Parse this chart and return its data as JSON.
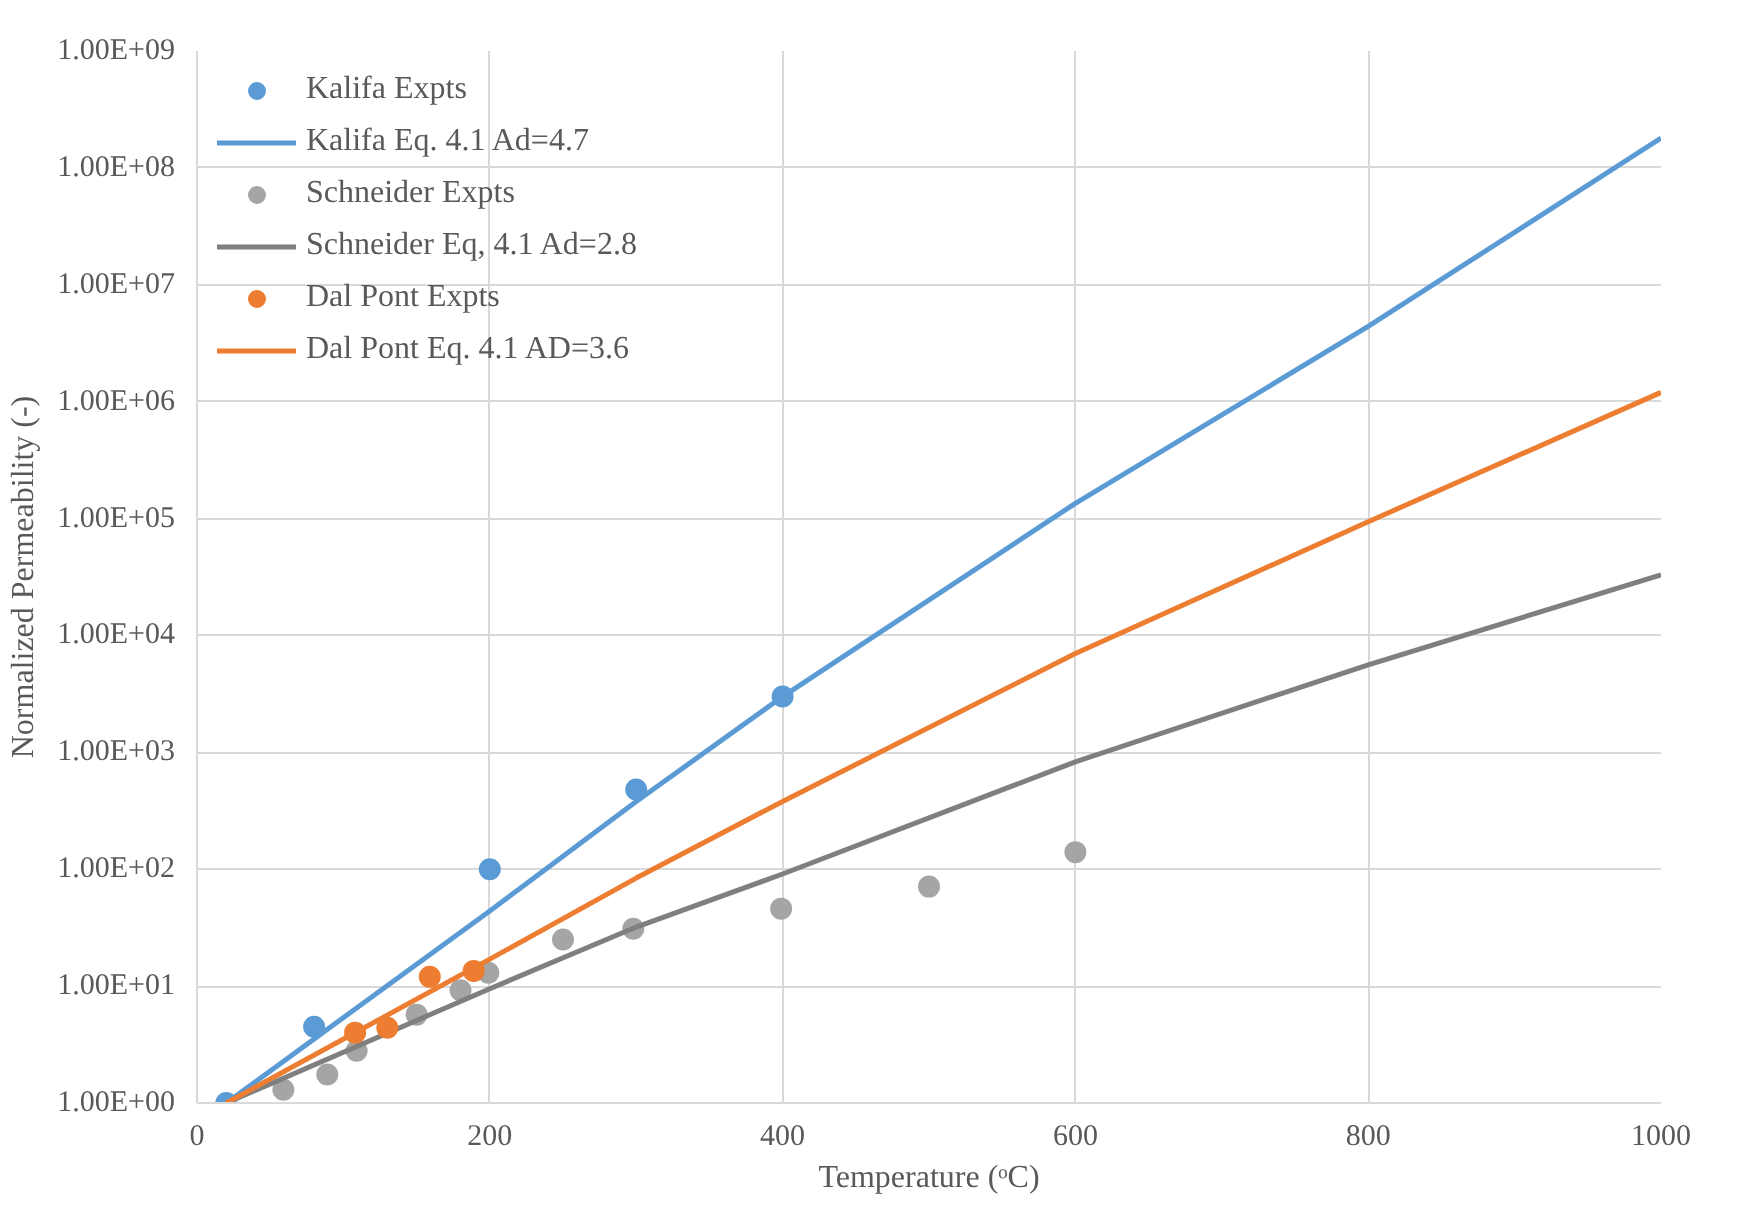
{
  "chart_data": {
    "type": "line",
    "xlabel": "Temperature (ᵒC)",
    "ylabel": "Normalized Permeability (-)",
    "log": "y",
    "grid": true,
    "legend": "top left",
    "xlim": [
      0,
      1000
    ],
    "xticks": [
      0,
      200,
      400,
      600,
      800,
      1000
    ],
    "ylim": [
      1,
      1000000000
    ],
    "yticks": [
      {
        "value": 1,
        "label": "1.00E+00"
      },
      {
        "value": 10,
        "label": "1.00E+01"
      },
      {
        "value": 100,
        "label": "1.00E+02"
      },
      {
        "value": 1000,
        "label": "1.00E+03"
      },
      {
        "value": 10000,
        "label": "1.00E+04"
      },
      {
        "value": 100000,
        "label": "1.00E+05"
      },
      {
        "value": 1000000,
        "label": "1.00E+06"
      },
      {
        "value": 10000000,
        "label": "1.00E+07"
      },
      {
        "value": 100000000,
        "label": "1.00E+08"
      },
      {
        "value": 1000000000,
        "label": "1.00E+09"
      }
    ],
    "series": [
      {
        "name": "Kalifa Expts",
        "type": "scatter",
        "marker": "circle",
        "color": "#5b9bd5",
        "x": [
          20,
          80,
          200,
          300,
          400
        ],
        "values": [
          1,
          4.5,
          100,
          480,
          3000
        ]
      },
      {
        "name": "Kalifa Eq. 4.1 Ad=4.7",
        "color": "#5b9bd5",
        "x": [
          20,
          200,
          300,
          400,
          600,
          800,
          1000
        ],
        "values": [
          1,
          44,
          380,
          3000,
          135000,
          4400000,
          180000000
        ]
      },
      {
        "name": "Schneider Expts",
        "type": "scatter",
        "marker": "circle",
        "color": "#a5a5a5",
        "x": [
          59,
          89,
          109,
          150,
          180,
          199,
          250,
          298,
          399,
          500,
          600
        ],
        "values": [
          1.3,
          1.75,
          2.8,
          5.7,
          9.2,
          13,
          25,
          31,
          46,
          71,
          140
        ]
      },
      {
        "name": "Schneider Eq, 4.1 Ad=2.8",
        "color": "#7f7f7f",
        "x": [
          20,
          200,
          300,
          400,
          600,
          800,
          1000
        ],
        "values": [
          1,
          9.5,
          32,
          91,
          830,
          5600,
          33000
        ]
      },
      {
        "name": "Dal Pont Expts",
        "type": "scatter",
        "marker": "circle",
        "color": "#ed7d31",
        "x": [
          108,
          130,
          159,
          189
        ],
        "values": [
          4,
          4.4,
          12,
          13.5
        ]
      },
      {
        "name": "Dal Pont Eq. 4.1 AD=3.6",
        "color": "#ed7d31",
        "x": [
          20,
          200,
          300,
          400,
          600,
          800,
          1000
        ],
        "values": [
          1,
          17,
          84,
          380,
          7000,
          94000,
          1200000
        ]
      }
    ]
  }
}
